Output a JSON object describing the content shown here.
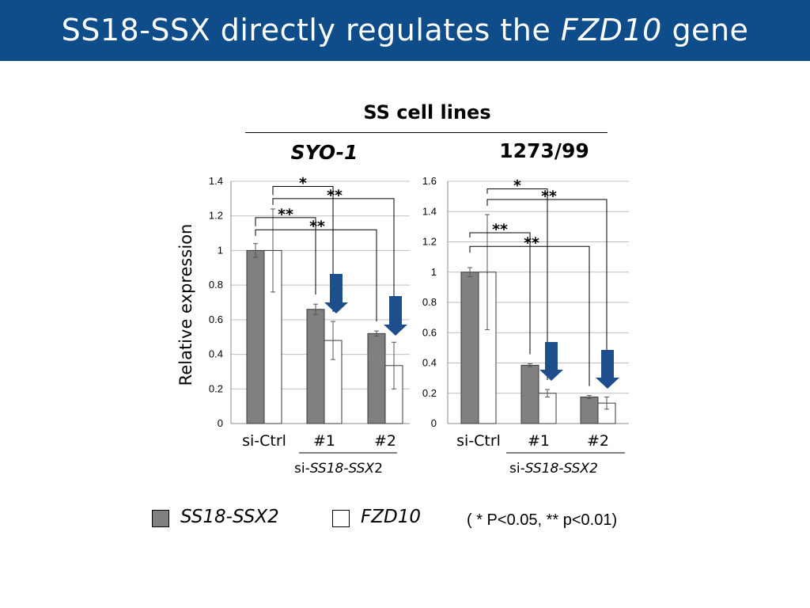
{
  "slide": {
    "title_prefix": "SS18-SSX directly regulates the ",
    "title_gene": "FZD10",
    "title_suffix": " gene"
  },
  "group_header": "SS cell lines",
  "y_axis_label": "Relative expression",
  "legend": {
    "items": [
      {
        "label": "SS18-SSX2",
        "color": "#808080"
      },
      {
        "label": "FZD10",
        "color": "#ffffff"
      }
    ],
    "significance_note": "( * P<0.05, ** p<0.01)"
  },
  "colors": {
    "title_bar": "#0f4c8a",
    "arrow": "#1f4e8c",
    "ss18_bar": "#808080",
    "fzd10_bar": "#ffffff"
  },
  "chart_data": [
    {
      "type": "bar",
      "title": "SYO-1",
      "categories": [
        "si-Ctrl",
        "#1",
        "#2"
      ],
      "category_group_label_prefix": "si-",
      "category_group_label_gene": "SS18-SSX",
      "category_group_label_suffix": "2",
      "ylim": [
        0,
        1.4
      ],
      "yticks": [
        "0",
        "0.2",
        "0.4",
        "0.6",
        "0.8",
        "1",
        "1.2",
        "1.4"
      ],
      "grid": true,
      "series": [
        {
          "name": "SS18-SSX2",
          "values": [
            1.0,
            0.66,
            0.52
          ],
          "errors": [
            0.04,
            0.03,
            0.015
          ]
        },
        {
          "name": "FZD10",
          "values": [
            1.0,
            0.48,
            0.335
          ],
          "errors": [
            0.24,
            0.11,
            0.135
          ]
        }
      ],
      "significance": [
        {
          "label": "*",
          "from": [
            "FZD10",
            0
          ],
          "to": [
            "FZD10",
            1
          ],
          "level": 1.37
        },
        {
          "label": "**",
          "from": [
            "FZD10",
            0
          ],
          "to": [
            "FZD10",
            2
          ],
          "level": 1.3
        },
        {
          "label": "**",
          "from": [
            "SS18-SSX2",
            0
          ],
          "to": [
            "SS18-SSX2",
            1
          ],
          "level": 1.19
        },
        {
          "label": "**",
          "from": [
            "SS18-SSX2",
            0
          ],
          "to": [
            "SS18-SSX2",
            2
          ],
          "level": 1.12
        }
      ]
    },
    {
      "type": "bar",
      "title": "1273/99",
      "categories": [
        "si-Ctrl",
        "#1",
        "#2"
      ],
      "category_group_label_prefix": "si-",
      "category_group_label_gene": "SS18-SSX2",
      "category_group_label_suffix": "",
      "ylim": [
        0,
        1.6
      ],
      "yticks": [
        "0",
        "0.2",
        "0.4",
        "0.6",
        "0.8",
        "1",
        "1.2",
        "1.4",
        "1.6"
      ],
      "grid": true,
      "series": [
        {
          "name": "SS18-SSX2",
          "values": [
            1.0,
            0.385,
            0.175
          ],
          "errors": [
            0.03,
            0.01,
            0.01
          ]
        },
        {
          "name": "FZD10",
          "values": [
            1.0,
            0.2,
            0.135
          ],
          "errors": [
            0.38,
            0.025,
            0.04
          ]
        }
      ],
      "significance": [
        {
          "label": "*",
          "from": [
            "FZD10",
            0
          ],
          "to": [
            "FZD10",
            1
          ],
          "level": 1.55
        },
        {
          "label": "**",
          "from": [
            "FZD10",
            0
          ],
          "to": [
            "FZD10",
            2
          ],
          "level": 1.48
        },
        {
          "label": "**",
          "from": [
            "SS18-SSX2",
            0
          ],
          "to": [
            "SS18-SSX2",
            1
          ],
          "level": 1.26
        },
        {
          "label": "**",
          "from": [
            "SS18-SSX2",
            0
          ],
          "to": [
            "SS18-SSX2",
            2
          ],
          "level": 1.17
        }
      ]
    }
  ]
}
